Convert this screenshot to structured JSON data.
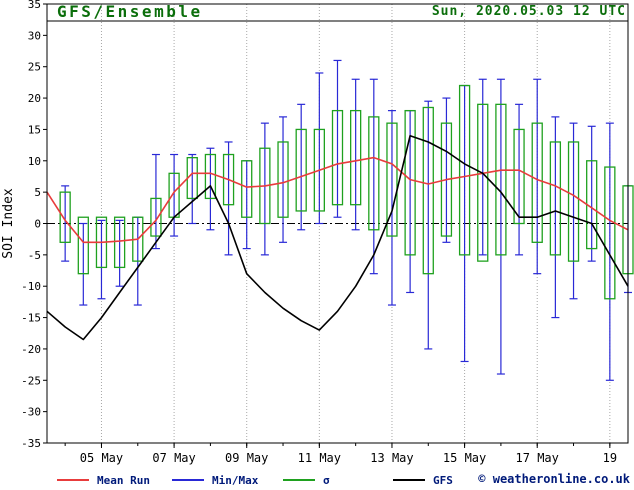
{
  "header": {
    "model": "GFS/Ensemble",
    "run": "Sun, 2020.05.03  12 UTC"
  },
  "watermark": "© weatheronline.co.uk",
  "colors": {
    "title": "#0b6e0b",
    "legend_text": "#001a7a",
    "watermark": "#001a7a",
    "grid": "#a8a8a8",
    "mean": "#e83c3c",
    "minmax": "#2929d6",
    "sigma": "#1fa11f",
    "gfs": "#000000"
  },
  "legend": [
    {
      "label": "Mean Run",
      "color": "#e83c3c"
    },
    {
      "label": "Min/Max",
      "color": "#2929d6"
    },
    {
      "label": "σ",
      "color": "#1fa11f"
    },
    {
      "label": "GFS",
      "color": "#000000"
    }
  ],
  "chart_data": {
    "type": "line+box-whisker",
    "title": "GFS/Ensemble",
    "subtitle": "Sun, 2020.05.03 12 UTC",
    "ylabel": "SOI Index",
    "ylim": [
      -35,
      35
    ],
    "ytick_step": 5,
    "x_range_days": [
      3.5,
      19.5
    ],
    "xticks": [
      {
        "day": 5,
        "label": "05 May"
      },
      {
        "day": 7,
        "label": "07 May"
      },
      {
        "day": 9,
        "label": "09 May"
      },
      {
        "day": 11,
        "label": "11 May"
      },
      {
        "day": 13,
        "label": "13 May"
      },
      {
        "day": 15,
        "label": "15 May"
      },
      {
        "day": 17,
        "label": "17 May"
      },
      {
        "day": 19,
        "label": "19"
      }
    ],
    "x_days": [
      3.5,
      4,
      4.5,
      5,
      5.5,
      6,
      6.5,
      7,
      7.5,
      8,
      8.5,
      9,
      9.5,
      10,
      10.5,
      11,
      11.5,
      12,
      12.5,
      13,
      13.5,
      14,
      14.5,
      15,
      15.5,
      16,
      16.5,
      17,
      17.5,
      18,
      18.5,
      19,
      19.5
    ],
    "series": [
      {
        "name": "Mean Run",
        "type": "line",
        "color": "#e83c3c",
        "values": [
          5,
          0.5,
          -3,
          -3,
          -2.8,
          -2.5,
          0.5,
          5,
          8,
          8,
          7,
          5.8,
          6,
          6.5,
          7.5,
          8.5,
          9.5,
          10,
          10.5,
          9.5,
          7,
          6.3,
          7,
          7.5,
          8,
          8.5,
          8.5,
          7,
          6,
          4.5,
          2.5,
          0.5,
          -1
        ]
      },
      {
        "name": "GFS",
        "type": "line",
        "color": "#000000",
        "values": [
          -14,
          -16.5,
          -18.5,
          -15,
          -11,
          -7,
          -3,
          1,
          3.5,
          6,
          0,
          -8,
          -11,
          -13.5,
          -15.5,
          -17,
          -14,
          -10,
          -5,
          2,
          14,
          13,
          11.5,
          9.5,
          8,
          5,
          1,
          1,
          2,
          1,
          0,
          -5,
          -10
        ]
      },
      {
        "name": "Min/Max",
        "type": "whisker",
        "color": "#2929d6",
        "min": [
          null,
          -6,
          -13,
          -12,
          -10,
          -13,
          -4,
          -2,
          0,
          -1,
          -5,
          -4,
          -5,
          -3,
          -1,
          0,
          1,
          -1,
          -8,
          -13,
          -11,
          -20,
          -3,
          -22,
          -5,
          -24,
          -5,
          -8,
          -15,
          -12,
          -6,
          -25,
          -11
        ],
        "max": [
          null,
          6,
          0,
          0.5,
          0.5,
          1,
          11,
          11,
          11,
          12,
          13,
          10,
          16,
          17,
          19,
          24,
          26,
          23,
          23,
          18,
          18,
          19.5,
          20,
          22,
          23,
          23,
          19,
          23,
          17,
          16,
          15.5,
          16,
          6
        ]
      },
      {
        "name": "σ",
        "type": "box",
        "color": "#1fa11f",
        "low": [
          null,
          -3,
          -8,
          -7,
          -7,
          -6,
          -2,
          1,
          4,
          4,
          3,
          1,
          0,
          1,
          2,
          2,
          3,
          3,
          -1,
          -2,
          -5,
          -8,
          -2,
          -5,
          -6,
          -5,
          0,
          -3,
          -5,
          -6,
          -4,
          -12,
          -8
        ],
        "high": [
          null,
          5,
          1,
          1,
          1,
          1,
          4,
          8,
          10.5,
          11,
          11,
          10,
          12,
          13,
          15,
          15,
          18,
          18,
          17,
          16,
          18,
          18.5,
          16,
          22,
          19,
          19,
          15,
          16,
          13,
          13,
          10,
          9,
          6
        ]
      }
    ]
  }
}
